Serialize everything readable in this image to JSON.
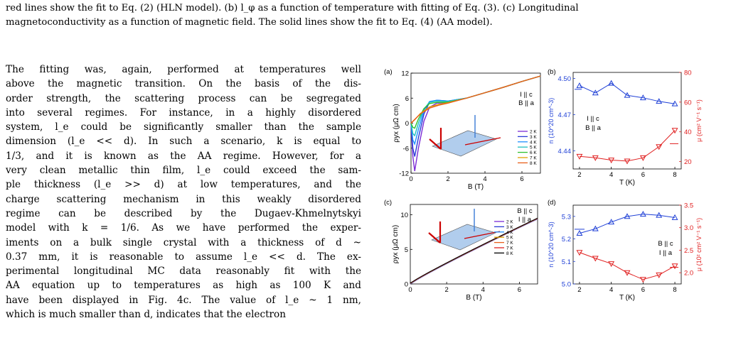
{
  "caption": {
    "line1": "red lines show the fit to Eq. (2) (HLN model). (b) l_φ as a function of temperature with fitting of Eq. (3). (c) Longitudinal",
    "line2": "magnetoconductivity as a function of magnetic field. The solid lines show the fit to Eq. (4) (AA model)."
  },
  "paragraph": {
    "lines": [
      "The fitting was, again, performed at temperatures well",
      "above the magnetic transition. On the basis of the dis-",
      "order strength, the scattering process can be segregated",
      "into several regimes. For instance, in a highly disordered",
      "system, l_e could be significantly smaller than the sample",
      "dimension (l_e << d). In such a scenario, k is equal to",
      "1/3, and it is known as the AA regime. However, for a",
      "very clean metallic thin film, l_e could exceed the sam-",
      "ple thickness (l_e >> d) at low temperatures, and the",
      "charge scattering mechanism in this weakly disordered",
      "regime can be described by the Dugaev-Khmelnytskyi",
      "model with k = 1/6. As we have performed the exper-",
      "iments on a bulk single crystal with a thickness of d ~",
      "0.37 mm, it is reasonable to assume l_e << d. The ex-",
      "perimental longitudinal MC data reasonably fit with the",
      "AA equation up to temperatures as high as 100 K and",
      "have been displayed in Fig. 4c. The value of l_e ~ 1 nm,",
      "which is much smaller than d, indicates that the electron"
    ]
  },
  "chart_data": [
    {
      "panel": "(a)",
      "type": "line",
      "xlabel": "B (T)",
      "ylabel": "ρyx (μΩ cm)",
      "xlim": [
        0,
        7
      ],
      "ylim": [
        -12,
        12
      ],
      "xticks": [
        "0",
        "2",
        "4",
        "6"
      ],
      "yticks": [
        "-12",
        "-6",
        "0",
        "6",
        "12"
      ],
      "annotation": [
        "I || c",
        "B || a"
      ],
      "legend_position": "right",
      "series": [
        {
          "name": "2 K",
          "color": "#7b2bd6",
          "x": [
            0,
            0.1,
            0.2,
            0.4,
            0.7,
            1.0,
            1.4,
            2.0,
            3,
            4,
            5,
            6,
            7
          ],
          "y": [
            0,
            -8,
            -11.5,
            -6,
            0.5,
            3.8,
            4.8,
            4.9,
            6.0,
            7.3,
            8.6,
            10.0,
            11.3
          ]
        },
        {
          "name": "3 K",
          "color": "#2b3bd6",
          "x": [
            0,
            0.1,
            0.2,
            0.4,
            0.7,
            1.0,
            1.4,
            2.0,
            3,
            4,
            5,
            6,
            7
          ],
          "y": [
            0,
            -6,
            -8,
            -3.5,
            2.2,
            5,
            5.5,
            5.3,
            6.0,
            7.3,
            8.6,
            10.0,
            11.3
          ]
        },
        {
          "name": "4 K",
          "color": "#1e90ff",
          "x": [
            0,
            0.1,
            0.2,
            0.4,
            0.7,
            1.0,
            1.4,
            2.0,
            3,
            4,
            5,
            6,
            7
          ],
          "y": [
            0,
            -4,
            -5,
            -1.5,
            3.0,
            5.2,
            5.5,
            5.3,
            6.0,
            7.3,
            8.6,
            10.0,
            11.3
          ]
        },
        {
          "name": "5 K",
          "color": "#20c0c0",
          "x": [
            0,
            0.1,
            0.2,
            0.4,
            0.7,
            1.0,
            1.4,
            2.0,
            3,
            4,
            5,
            6,
            7
          ],
          "y": [
            0,
            -2.5,
            -3,
            0,
            3.4,
            5.0,
            5.3,
            5.2,
            6.0,
            7.3,
            8.6,
            10.0,
            11.3
          ]
        },
        {
          "name": "6 K",
          "color": "#30c030",
          "x": [
            0,
            0.1,
            0.2,
            0.4,
            0.7,
            1.0,
            1.4,
            2.0,
            3,
            4,
            5,
            6,
            7
          ],
          "y": [
            0,
            -1,
            -1.2,
            1,
            3.5,
            4.7,
            5.0,
            5.0,
            6.0,
            7.3,
            8.6,
            10.0,
            11.3
          ]
        },
        {
          "name": "7 K",
          "color": "#e0a000",
          "x": [
            0,
            0.2,
            0.5,
            1.0,
            1.5,
            2.0,
            3,
            4,
            5,
            6,
            7
          ],
          "y": [
            0,
            0.8,
            2.3,
            3.9,
            4.5,
            4.9,
            6.0,
            7.3,
            8.6,
            10.0,
            11.3
          ]
        },
        {
          "name": "8 K",
          "color": "#e8601c",
          "x": [
            0,
            0.2,
            0.5,
            1.0,
            1.5,
            2.0,
            3,
            4,
            5,
            6,
            7
          ],
          "y": [
            0,
            0.9,
            2.2,
            3.6,
            4.3,
            4.8,
            6.0,
            7.3,
            8.6,
            10.0,
            11.3
          ]
        }
      ]
    },
    {
      "panel": "(b)",
      "type": "line",
      "xlabel": "T (K)",
      "ylabel_left": "n (10^20 cm^-3)",
      "ylabel_right": "μ (cm² V⁻¹ s⁻¹)",
      "xlim": [
        1.6,
        8.4
      ],
      "ylim_left": [
        4.425,
        4.505
      ],
      "ylim_right": [
        15,
        80
      ],
      "xticks": [
        "2",
        "4",
        "6",
        "8"
      ],
      "yticks_left": [
        "4.44",
        "4.47",
        "4.50"
      ],
      "yticks_right": [
        "20",
        "40",
        "60",
        "80"
      ],
      "annotation": [
        "I || c",
        "B || a"
      ],
      "series": [
        {
          "name": "n",
          "axis": "left",
          "color": "#1e3fd6",
          "marker": "triangle-up",
          "x": [
            2,
            3,
            4,
            5,
            6,
            7,
            8
          ],
          "y": [
            4.494,
            4.488,
            4.496,
            4.486,
            4.484,
            4.481,
            4.479
          ]
        },
        {
          "name": "μ",
          "axis": "right",
          "color": "#e02020",
          "marker": "triangle-down",
          "x": [
            2,
            3,
            4,
            5,
            6,
            7,
            8
          ],
          "y": [
            23.5,
            22.5,
            21,
            20.3,
            22.5,
            30,
            41
          ]
        }
      ]
    },
    {
      "panel": "(c)",
      "type": "line",
      "xlabel": "B (T)",
      "ylabel": "ρyx (μΩ cm)",
      "xlim": [
        0,
        7
      ],
      "ylim": [
        0,
        11.5
      ],
      "xticks": [
        "0",
        "2",
        "4",
        "6"
      ],
      "yticks": [
        "0",
        "5",
        "10"
      ],
      "annotation": [
        "B || c",
        "I || a"
      ],
      "legend_position": "right",
      "series": [
        {
          "name": "2 K",
          "color": "#7b2bd6",
          "x": [
            0,
            7
          ],
          "y": [
            0,
            9.4
          ]
        },
        {
          "name": "3 K",
          "color": "#2b3bd6",
          "x": [
            0,
            7
          ],
          "y": [
            0,
            9.4
          ]
        },
        {
          "name": "4 K",
          "color": "#1e90ff",
          "x": [
            0,
            7
          ],
          "y": [
            0,
            9.4
          ]
        },
        {
          "name": "5 K",
          "color": "#e0a000",
          "x": [
            0,
            7
          ],
          "y": [
            0,
            9.4
          ]
        },
        {
          "name": "7 K",
          "color": "#e8601c",
          "x": [
            0,
            7
          ],
          "y": [
            0,
            9.4
          ]
        },
        {
          "name": "7 K",
          "color": "#e02020",
          "x": [
            0,
            7
          ],
          "y": [
            0,
            9.4
          ]
        },
        {
          "name": "8 K",
          "color": "#000000",
          "x": [
            0,
            7
          ],
          "y": [
            0,
            9.4
          ]
        }
      ]
    },
    {
      "panel": "(d)",
      "type": "line",
      "xlabel": "T (K)",
      "ylabel_left": "n (10^20 cm^-3)",
      "ylabel_right": "μ (10² cm² V⁻¹ s⁻¹)",
      "xlim": [
        1.6,
        8.4
      ],
      "ylim_left": [
        5.0,
        5.35
      ],
      "ylim_right": [
        1.75,
        3.5
      ],
      "xticks": [
        "2",
        "4",
        "6",
        "8"
      ],
      "yticks_left": [
        "5.0",
        "5.1",
        "5.2",
        "5.3"
      ],
      "yticks_right": [
        "2.0",
        "2.5",
        "3.0",
        "3.5"
      ],
      "annotation": [
        "B || c",
        "I || a"
      ],
      "series": [
        {
          "name": "n",
          "axis": "left",
          "color": "#1e3fd6",
          "marker": "triangle-up",
          "x": [
            2,
            3,
            4,
            5,
            6,
            7,
            8
          ],
          "y": [
            5.225,
            5.245,
            5.275,
            5.3,
            5.31,
            5.305,
            5.295
          ]
        },
        {
          "name": "μ",
          "axis": "right",
          "color": "#e02020",
          "marker": "triangle-down",
          "x": [
            2,
            3,
            4,
            5,
            6,
            7,
            8
          ],
          "y": [
            2.45,
            2.32,
            2.2,
            2.0,
            1.85,
            1.95,
            2.15
          ]
        }
      ]
    }
  ]
}
